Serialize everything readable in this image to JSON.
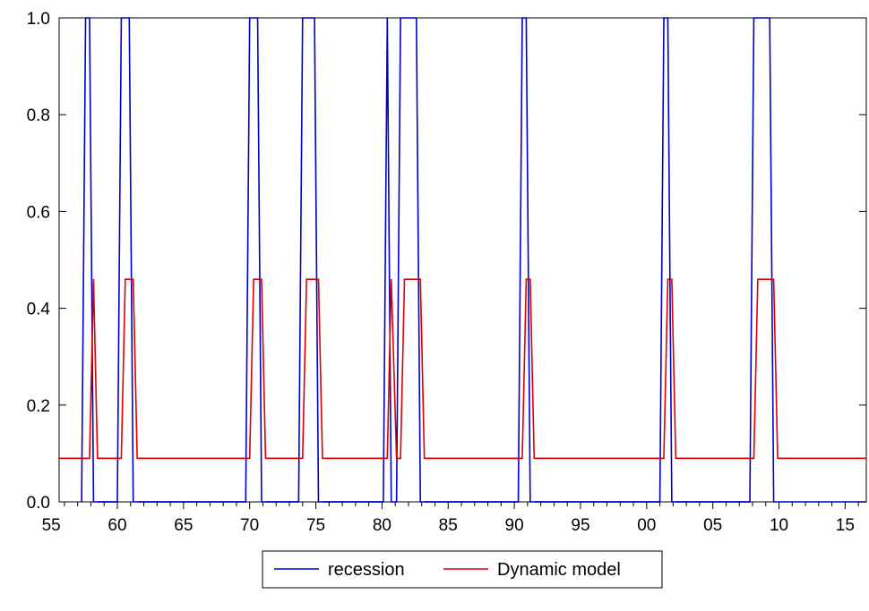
{
  "chart_data": {
    "type": "line",
    "title": "",
    "xlabel": "",
    "ylabel": "",
    "x_axis": {
      "type": "time",
      "range": [
        1955.6,
        2016.6
      ],
      "tick_labels": [
        {
          "year": 1955,
          "label": "55"
        },
        {
          "year": 1960,
          "label": "60"
        },
        {
          "year": 1965,
          "label": "65"
        },
        {
          "year": 1970,
          "label": "70"
        },
        {
          "year": 1975,
          "label": "75"
        },
        {
          "year": 1980,
          "label": "80"
        },
        {
          "year": 1985,
          "label": "85"
        },
        {
          "year": 1990,
          "label": "90"
        },
        {
          "year": 1995,
          "label": "95"
        },
        {
          "year": 2000,
          "label": "00"
        },
        {
          "year": 2005,
          "label": "05"
        },
        {
          "year": 2010,
          "label": "10"
        },
        {
          "year": 2015,
          "label": "15"
        }
      ]
    },
    "y_axis": {
      "range": [
        0,
        1
      ],
      "tick_labels": [
        {
          "value": 0.0,
          "label": "0.0"
        },
        {
          "value": 0.2,
          "label": "0.2"
        },
        {
          "value": 0.4,
          "label": "0.4"
        },
        {
          "value": 0.6,
          "label": "0.6"
        },
        {
          "value": 0.8,
          "label": "0.8"
        },
        {
          "value": 1.0,
          "label": "1.0"
        }
      ]
    },
    "grid": false,
    "legend_position": "bottom-center",
    "series": [
      {
        "name": "recession",
        "color": "#0000CC",
        "x": [
          1957.3,
          1957.6,
          1957.9,
          1958.2,
          1958.5,
          1960.0,
          1960.3,
          1960.6,
          1960.9,
          1961.2,
          1961.5,
          1969.7,
          1970.0,
          1970.3,
          1970.6,
          1970.9,
          1971.2,
          1973.7,
          1974.0,
          1974.3,
          1974.6,
          1974.9,
          1975.2,
          1975.5,
          1980.1,
          1980.4,
          1980.7,
          1981.1,
          1981.4,
          1981.7,
          1982.0,
          1982.3,
          1982.6,
          1982.9,
          1983.2,
          1990.3,
          1990.6,
          1990.9,
          1991.2,
          1991.5,
          2001.0,
          2001.3,
          2001.6,
          2001.9,
          2002.2,
          2007.8,
          2008.1,
          2008.4,
          2008.7,
          2009.0,
          2009.3,
          2009.6,
          2009.9
        ],
        "y": [
          0,
          1,
          1,
          0,
          0,
          0,
          1,
          1,
          1,
          0,
          0,
          0,
          1,
          1,
          1,
          0,
          0,
          0,
          1,
          1,
          1,
          1,
          0,
          0,
          0,
          1,
          0,
          0,
          1,
          1,
          1,
          1,
          1,
          0,
          0,
          0,
          1,
          1,
          0,
          0,
          0,
          1,
          1,
          0,
          0,
          0,
          1,
          1,
          1,
          1,
          1,
          0,
          0
        ],
        "extra_segments": [
          {
            "x": [
              1958.5,
              1960.0
            ],
            "y": [
              0,
              0
            ]
          },
          {
            "x": [
              1961.5,
              1969.7
            ],
            "y": [
              0,
              0
            ]
          },
          {
            "x": [
              1971.2,
              1973.7
            ],
            "y": [
              0,
              0
            ]
          },
          {
            "x": [
              1975.5,
              1980.1
            ],
            "y": [
              0,
              0
            ]
          },
          {
            "x": [
              1983.2,
              1990.3
            ],
            "y": [
              0,
              0
            ]
          },
          {
            "x": [
              1991.5,
              2001.0
            ],
            "y": [
              0,
              0
            ]
          },
          {
            "x": [
              2002.2,
              2007.8
            ],
            "y": [
              0,
              0
            ]
          },
          {
            "x": [
              2009.9,
              2016.6
            ],
            "y": [
              0,
              0
            ]
          }
        ]
      },
      {
        "name": "Dynamic model",
        "color": "#DD0000",
        "x": [
          1955.6,
          1957.6,
          1957.9,
          1958.2,
          1958.5,
          1960.3,
          1960.6,
          1960.9,
          1961.2,
          1961.5,
          1970.0,
          1970.3,
          1970.6,
          1970.9,
          1971.2,
          1974.0,
          1974.3,
          1974.6,
          1974.9,
          1975.2,
          1975.5,
          1980.4,
          1980.7,
          1981.1,
          1981.4,
          1981.7,
          1982.0,
          1982.3,
          1982.6,
          1982.9,
          1983.2,
          1990.6,
          1990.9,
          1991.2,
          1991.5,
          2001.3,
          2001.6,
          2001.9,
          2002.2,
          2008.1,
          2008.4,
          2008.7,
          2009.0,
          2009.3,
          2009.6,
          2009.9,
          2016.6
        ],
        "y": [
          0.09,
          0.09,
          0.09,
          0.46,
          0.09,
          0.09,
          0.46,
          0.46,
          0.46,
          0.09,
          0.09,
          0.46,
          0.46,
          0.46,
          0.09,
          0.09,
          0.46,
          0.46,
          0.46,
          0.46,
          0.09,
          0.09,
          0.46,
          0.09,
          0.09,
          0.46,
          0.46,
          0.46,
          0.46,
          0.46,
          0.09,
          0.09,
          0.46,
          0.46,
          0.09,
          0.09,
          0.46,
          0.46,
          0.09,
          0.09,
          0.46,
          0.46,
          0.46,
          0.46,
          0.46,
          0.09,
          0.09
        ]
      }
    ]
  }
}
